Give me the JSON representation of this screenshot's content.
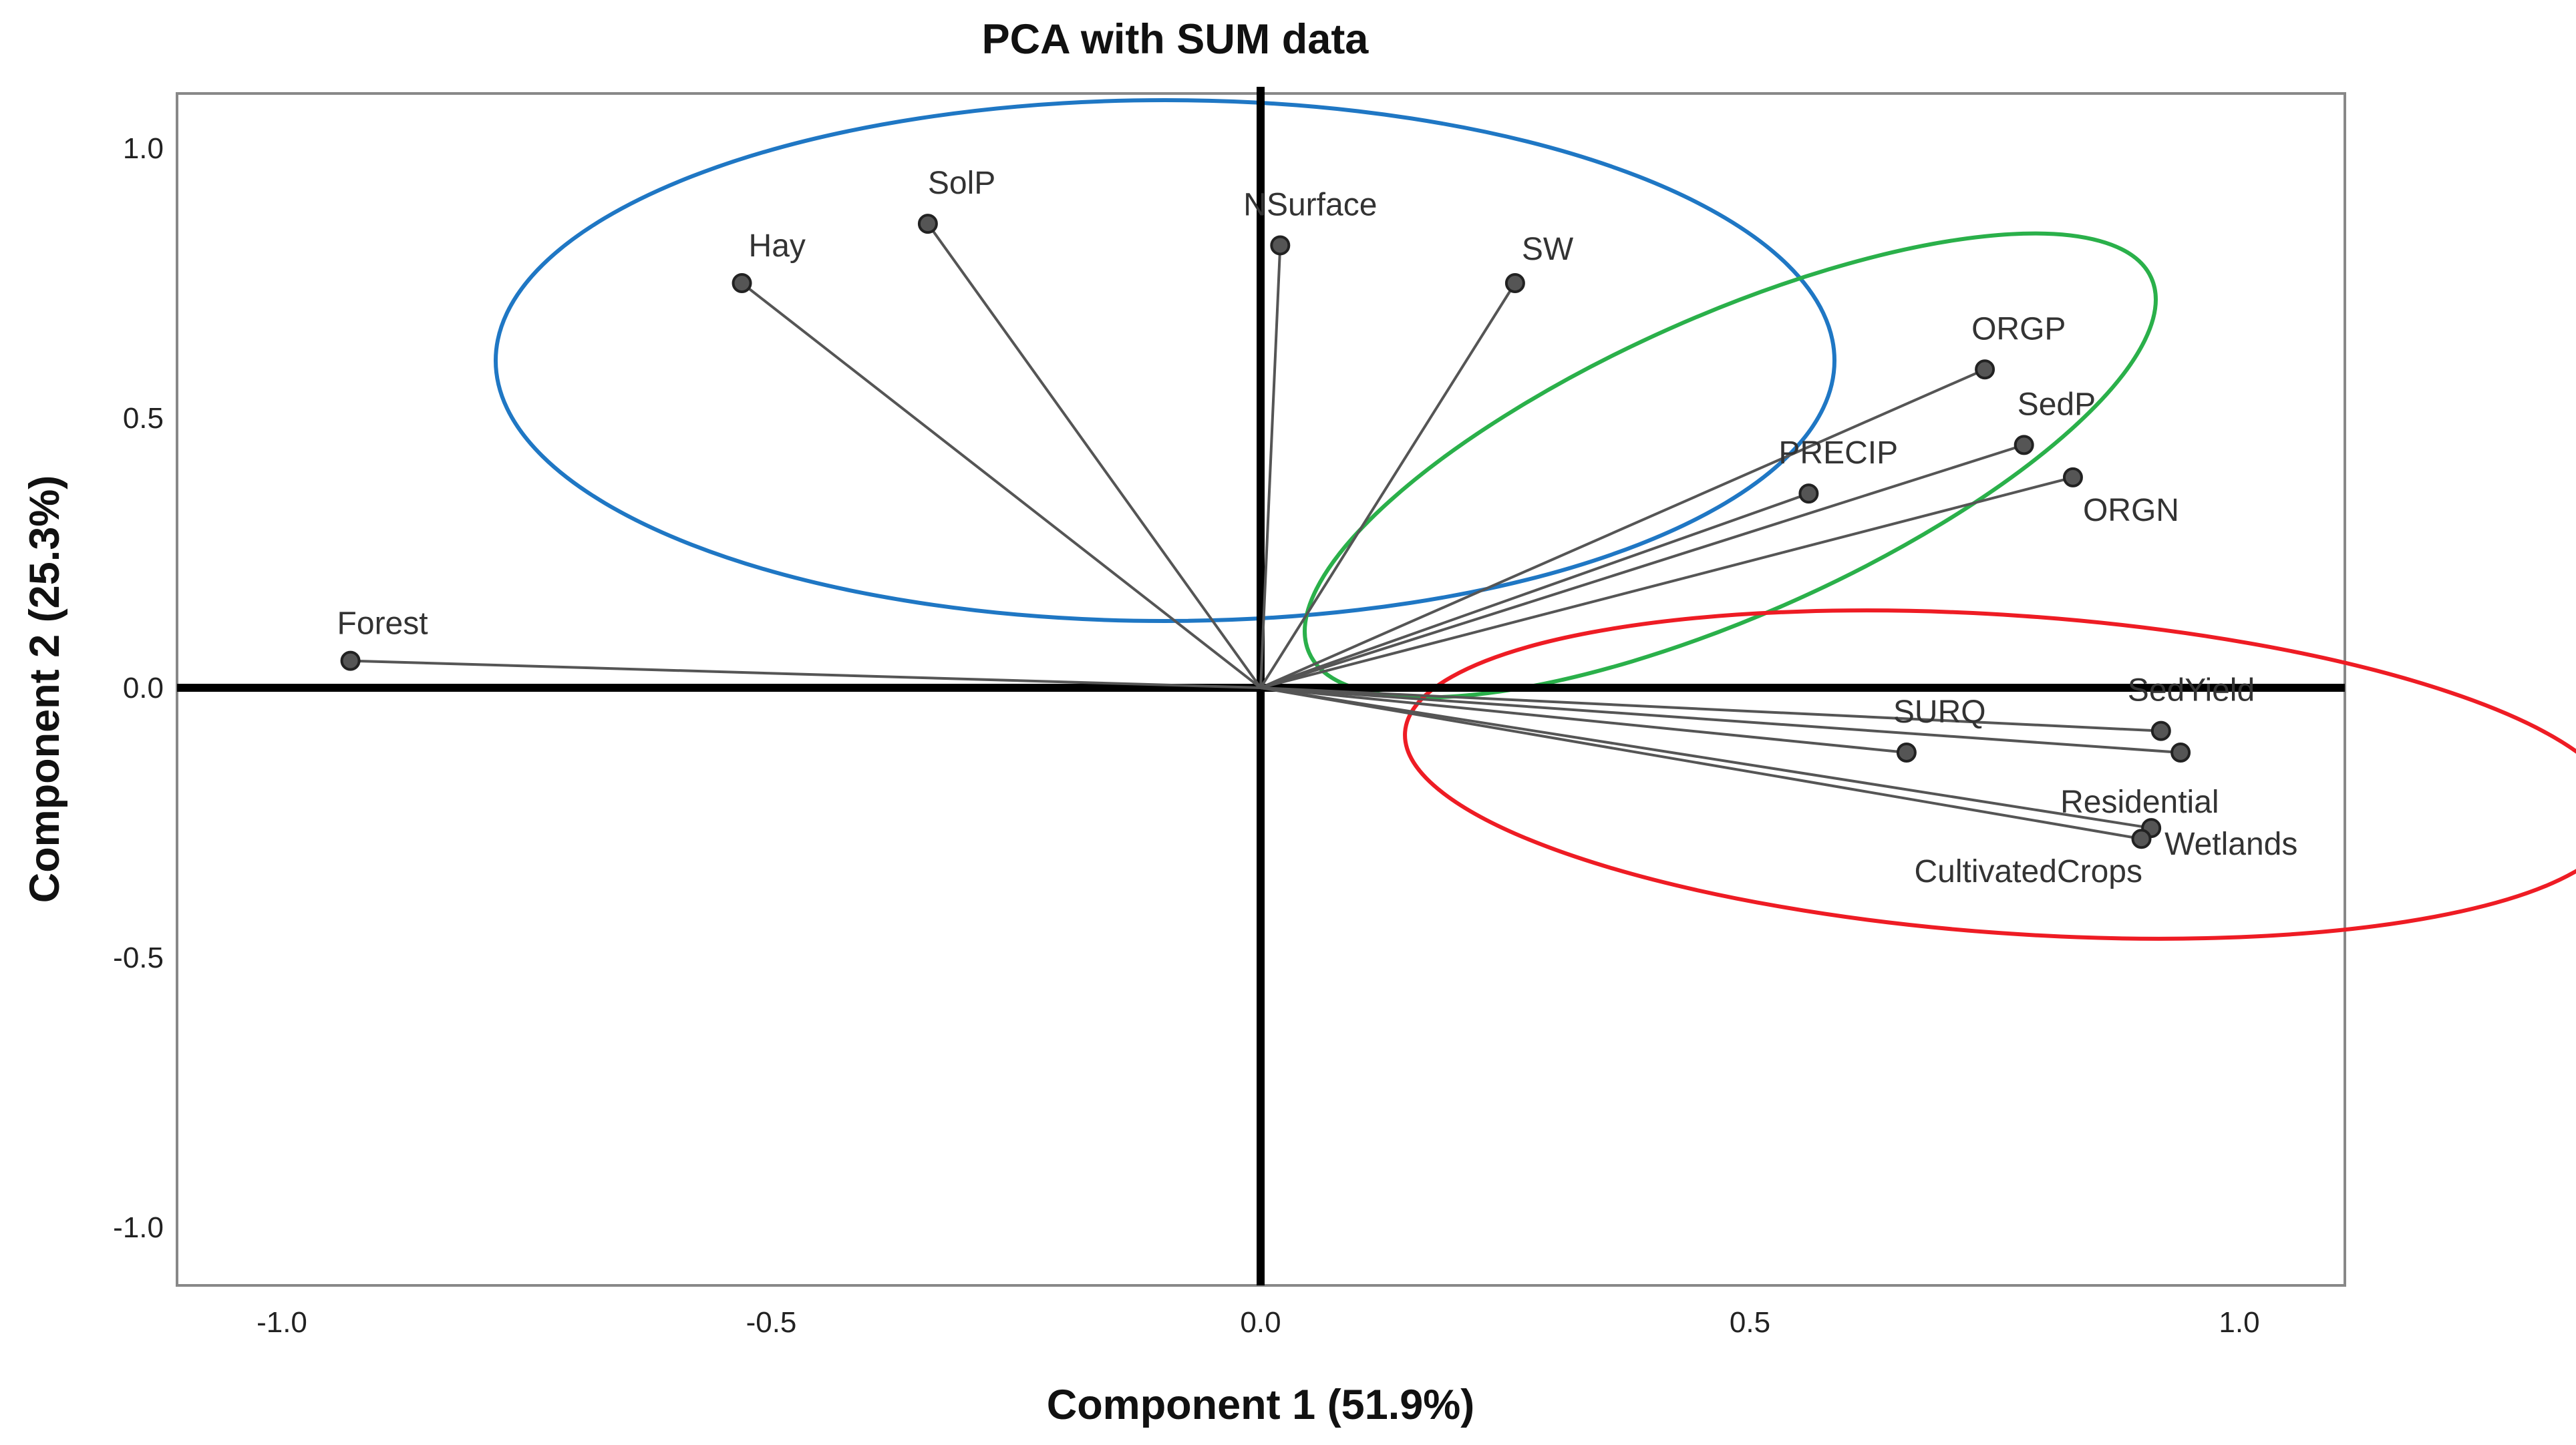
{
  "chart_data": {
    "type": "scatter",
    "subtype": "pca-loading-plot",
    "title": "PCA with SUM data",
    "xlabel": "Component 1 (51.9%)",
    "ylabel": "Component 2 (25.3%)",
    "xlim": [
      -1.1,
      1.1
    ],
    "ylim": [
      -1.1,
      1.1
    ],
    "x_ticks": [
      -1.0,
      -0.5,
      0.0,
      0.5,
      1.0
    ],
    "x_tick_labels": [
      "-1.0",
      "-0.5",
      "0.0",
      "0.5",
      "1.0"
    ],
    "y_ticks": [
      1.0,
      0.5,
      0.0,
      -0.5,
      -1.0
    ],
    "y_tick_labels": [
      "1.0",
      "0.5",
      "0.0",
      "-0.5",
      "-1.0"
    ],
    "grid": false,
    "points": [
      {
        "label": "Forest",
        "x": -0.93,
        "y": 0.05
      },
      {
        "label": "Hay",
        "x": -0.53,
        "y": 0.75
      },
      {
        "label": "SolP",
        "x": -0.34,
        "y": 0.86
      },
      {
        "label": "NSurface",
        "x": 0.02,
        "y": 0.82
      },
      {
        "label": "SW",
        "x": 0.26,
        "y": 0.75
      },
      {
        "label": "ORGP",
        "x": 0.74,
        "y": 0.59
      },
      {
        "label": "SedP",
        "x": 0.78,
        "y": 0.45
      },
      {
        "label": "ORGN",
        "x": 0.83,
        "y": 0.39
      },
      {
        "label": "PRECIP",
        "x": 0.56,
        "y": 0.36
      },
      {
        "label": "SURQ",
        "x": 0.66,
        "y": -0.12
      },
      {
        "label": "SedYield",
        "x": 0.92,
        "y": -0.08
      },
      {
        "label": "Residential",
        "x": 0.94,
        "y": -0.12
      },
      {
        "label": "Wetlands",
        "x": 0.91,
        "y": -0.26
      },
      {
        "label": "CultivatedCrops",
        "x": 0.9,
        "y": -0.28
      }
    ],
    "clusters": [
      {
        "name": "blue-cluster",
        "color": "#1f77c4",
        "members": [
          "Hay",
          "SolP",
          "NSurface",
          "SW"
        ]
      },
      {
        "name": "green-cluster",
        "color": "#2ab04a",
        "members": [
          "ORGP",
          "SedP",
          "ORGN",
          "PRECIP"
        ]
      },
      {
        "name": "red-cluster",
        "color": "#ee1c24",
        "members": [
          "SURQ",
          "SedYield",
          "Residential",
          "Wetlands",
          "CultivatedCrops"
        ]
      }
    ]
  }
}
